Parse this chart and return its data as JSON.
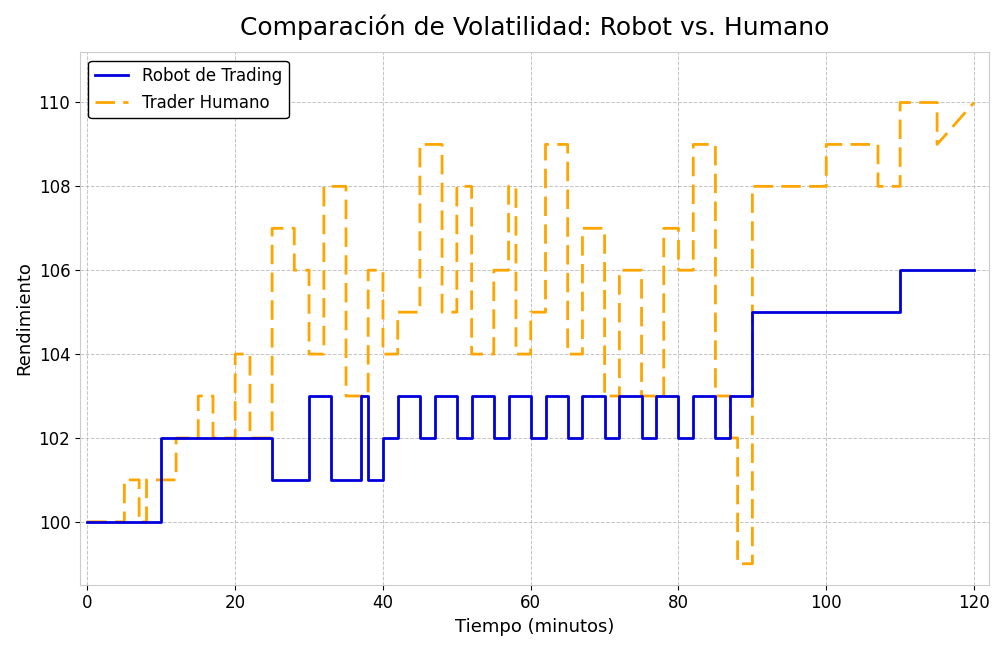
{
  "title": "Comparación de Volatilidad: Robot vs. Humano",
  "xlabel": "Tiempo (minutos)",
  "ylabel": "Rendimiento",
  "robot_x": [
    0,
    5,
    5,
    10,
    10,
    20,
    20,
    25,
    25,
    30,
    30,
    33,
    33,
    37,
    37,
    38,
    38,
    40,
    40,
    42,
    42,
    45,
    45,
    47,
    47,
    50,
    50,
    52,
    52,
    55,
    55,
    57,
    57,
    60,
    60,
    62,
    62,
    65,
    65,
    67,
    67,
    70,
    70,
    72,
    72,
    75,
    75,
    77,
    77,
    80,
    80,
    82,
    82,
    85,
    85,
    87,
    87,
    90,
    90,
    100,
    100,
    110,
    110,
    120
  ],
  "robot_y": [
    100,
    100,
    100,
    100,
    102,
    102,
    102,
    102,
    101,
    101,
    103,
    103,
    101,
    101,
    103,
    103,
    101,
    101,
    102,
    102,
    103,
    103,
    102,
    102,
    103,
    103,
    102,
    102,
    103,
    103,
    102,
    102,
    103,
    103,
    102,
    102,
    103,
    103,
    102,
    102,
    103,
    103,
    102,
    102,
    103,
    103,
    102,
    102,
    103,
    103,
    102,
    102,
    103,
    103,
    102,
    102,
    103,
    103,
    105,
    105,
    105,
    105,
    106,
    106
  ],
  "human_x": [
    0,
    2,
    2,
    5,
    5,
    7,
    7,
    8,
    8,
    10,
    10,
    12,
    12,
    15,
    15,
    17,
    17,
    20,
    20,
    22,
    22,
    25,
    25,
    28,
    28,
    30,
    30,
    32,
    32,
    35,
    35,
    38,
    38,
    40,
    40,
    42,
    42,
    45,
    45,
    48,
    48,
    50,
    50,
    52,
    52,
    55,
    55,
    57,
    57,
    58,
    58,
    60,
    60,
    62,
    62,
    65,
    65,
    67,
    67,
    70,
    70,
    72,
    72,
    75,
    75,
    78,
    78,
    80,
    80,
    82,
    82,
    85,
    85,
    87,
    87,
    88,
    88,
    90,
    90,
    95,
    95,
    100,
    100,
    107,
    107,
    110,
    110,
    115,
    115,
    120
  ],
  "human_y": [
    100,
    100,
    100,
    100,
    101,
    101,
    100,
    100,
    101,
    101,
    101,
    101,
    102,
    102,
    103,
    103,
    102,
    102,
    104,
    104,
    102,
    102,
    107,
    107,
    106,
    106,
    104,
    104,
    108,
    108,
    103,
    103,
    106,
    106,
    104,
    104,
    105,
    105,
    109,
    109,
    105,
    105,
    108,
    108,
    104,
    104,
    106,
    106,
    108,
    108,
    104,
    104,
    105,
    105,
    109,
    109,
    104,
    104,
    107,
    107,
    103,
    103,
    106,
    106,
    103,
    103,
    107,
    107,
    106,
    106,
    109,
    109,
    103,
    103,
    102,
    102,
    99,
    99,
    108,
    108,
    108,
    108,
    109,
    109,
    108,
    108,
    110,
    110,
    109,
    110
  ],
  "robot_color": "#0000dd",
  "human_color": "#FFA500",
  "background_color": "#ffffff",
  "grid_color": "#aaaaaa",
  "ylim": [
    98.5,
    111.2
  ],
  "xlim": [
    -1,
    122
  ],
  "yticks": [
    100,
    102,
    104,
    106,
    108,
    110
  ],
  "xticks": [
    0,
    20,
    40,
    60,
    80,
    100,
    120
  ],
  "title_fontsize": 18,
  "label_fontsize": 13,
  "tick_fontsize": 12,
  "legend_fontsize": 12,
  "robot_linewidth": 2.0,
  "human_linewidth": 2.0
}
